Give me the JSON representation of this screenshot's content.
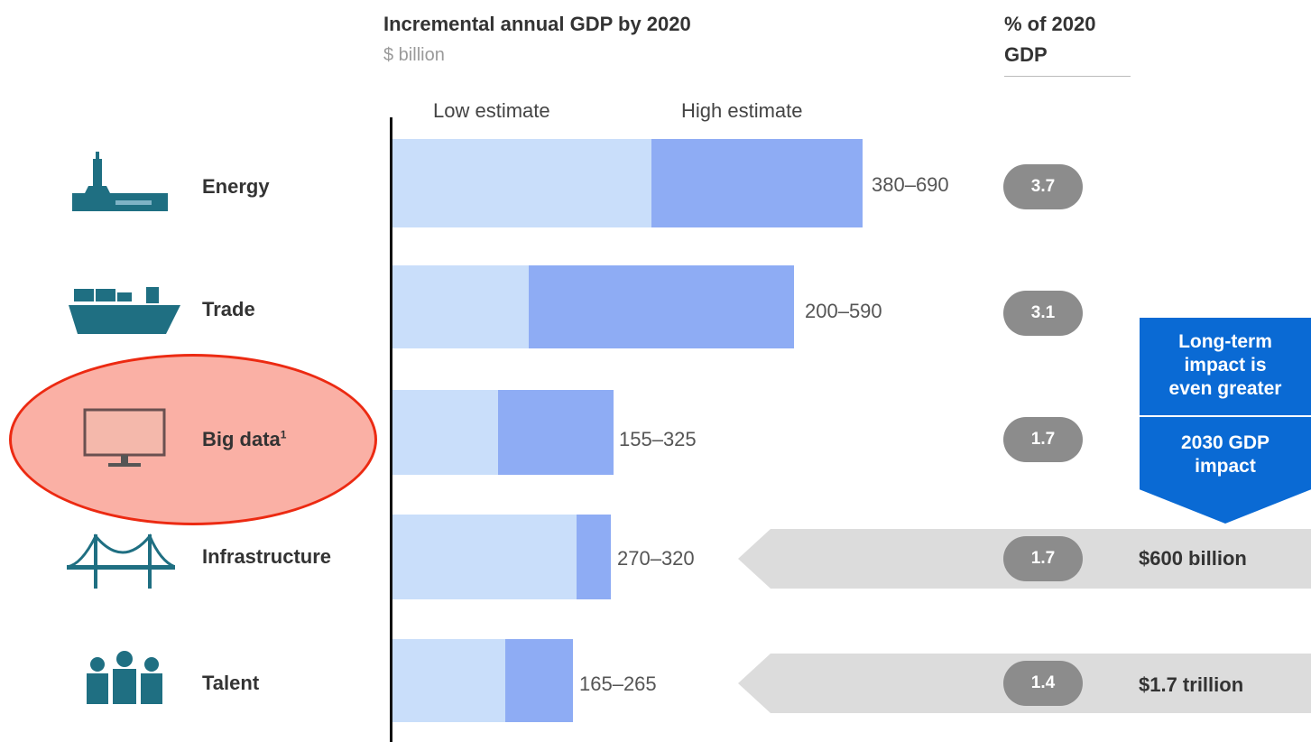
{
  "header": {
    "title": "Incremental annual GDP by 2020",
    "unit": "$ billion",
    "pct_title_line1": "% of 2020",
    "pct_title_line2": "GDP"
  },
  "legend": {
    "low": "Low estimate",
    "high": "High estimate"
  },
  "colors": {
    "low": "#c9defa",
    "high": "#8eacf4",
    "pill": "#8c8c8c",
    "callout": "#0a6ad4",
    "arrow": "#dcdcdc",
    "highlight": "#ec2a12"
  },
  "chart_data": {
    "type": "bar",
    "title": "Incremental annual GDP by 2020",
    "ylabel": "$ billion",
    "categories": [
      "Energy",
      "Trade",
      "Big data",
      "Infrastructure",
      "Talent"
    ],
    "series": [
      {
        "name": "Low estimate",
        "values": [
          380,
          200,
          155,
          270,
          165
        ]
      },
      {
        "name": "High estimate",
        "values": [
          690,
          590,
          325,
          320,
          265
        ]
      }
    ],
    "range_labels": [
      "380–690",
      "200–590",
      "155–325",
      "270–320",
      "165–265"
    ],
    "pct_of_2020_gdp": [
      "3.7",
      "3.1",
      "1.7",
      "1.7",
      "1.4"
    ],
    "xlim": [
      0,
      700
    ]
  },
  "rows": [
    {
      "label": "Energy",
      "sup": "",
      "icon": "oil-rig-icon"
    },
    {
      "label": "Trade",
      "sup": "",
      "icon": "cargo-ship-icon"
    },
    {
      "label": "Big data",
      "sup": "1",
      "icon": "monitor-icon"
    },
    {
      "label": "Infrastructure",
      "sup": "",
      "icon": "bridge-icon"
    },
    {
      "label": "Talent",
      "sup": "",
      "icon": "people-icon"
    }
  ],
  "callout": {
    "line1": "Long-term",
    "line2": "impact is",
    "line3": "even greater",
    "sub1": "2030 GDP",
    "sub2": "impact"
  },
  "gdp_2030": {
    "infrastructure": "$600 billion",
    "talent": "$1.7 trillion"
  }
}
